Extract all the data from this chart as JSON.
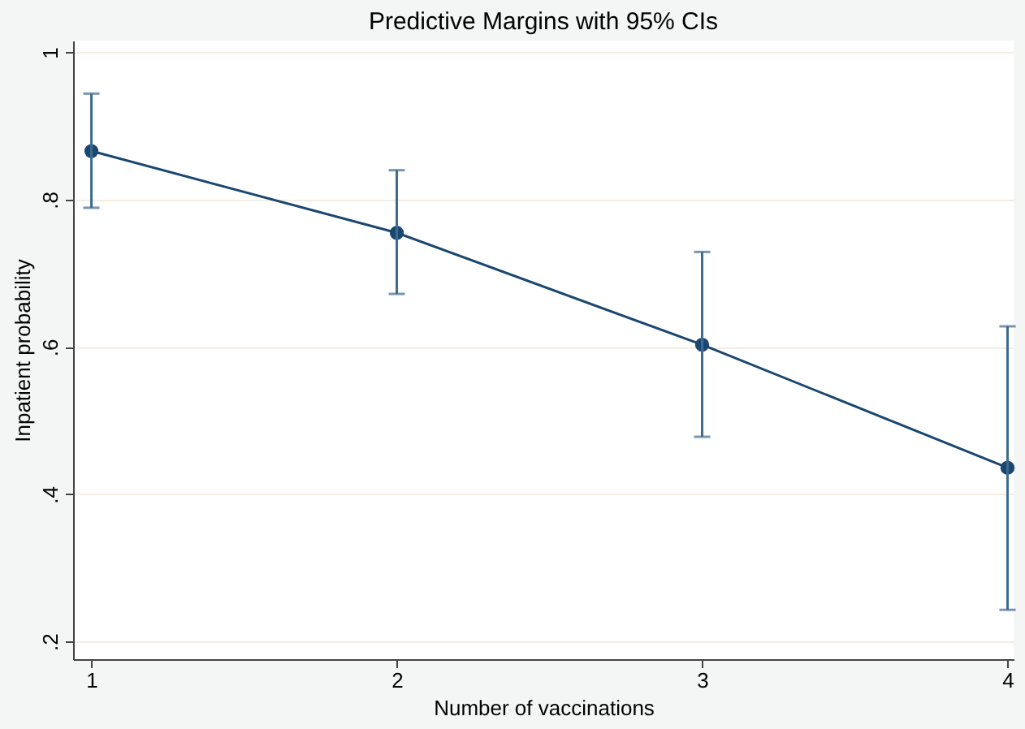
{
  "chart_data": {
    "type": "line",
    "title": "Predictive Margins with 95% CIs",
    "xlabel": "Number of vaccinations",
    "ylabel": "Inpatient probability",
    "x": [
      1,
      2,
      3,
      4
    ],
    "series": [
      {
        "color": "#1a476f",
        "values": [
          0.866,
          0.755,
          0.603,
          0.436
        ],
        "errors": [
          [
            0.789,
            0.944
          ],
          [
            0.672,
            0.84
          ],
          [
            0.478,
            0.729
          ],
          [
            0.243,
            0.628
          ]
        ]
      }
    ],
    "xlim": [
      0.94,
      4.02
    ],
    "ylim": [
      0.176,
      1.016
    ],
    "xticks": [
      1,
      2,
      3,
      4
    ],
    "yticks": [
      {
        "value": 0.2,
        "label": ".2"
      },
      {
        "value": 0.4,
        "label": ".4"
      },
      {
        "value": 0.6,
        "label": ".6"
      },
      {
        "value": 0.8,
        "label": ".8"
      },
      1
    ],
    "grid": "y",
    "marker": "circle",
    "line_style": "solid"
  }
}
